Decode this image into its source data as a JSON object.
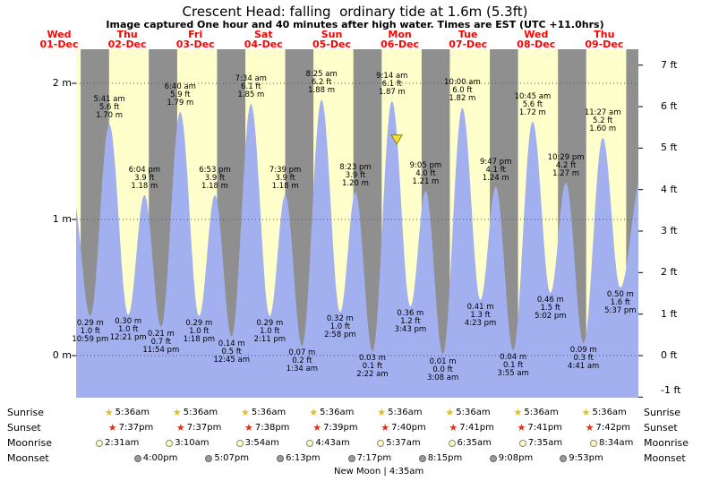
{
  "title": "Crescent Head: falling  ordinary tide at 1.6m (5.3ft)",
  "subtitle": "Image captured One hour and 40 minutes after high water. Times are EST (UTC +11.0hrs)",
  "colors": {
    "day_bg": "#ffffcc",
    "night_bg": "#8f8f8f",
    "tide_fill": "#a3b0f0",
    "day_label_red": "#ff0000",
    "marker_fill": "#f2e33c",
    "marker_border": "#8a8000",
    "sunrise_star": "#dfc019",
    "sunset_star": "#d63318",
    "moonrise_dot_fill": "#ffffbb",
    "moonrise_dot_border": "#888888",
    "moonset_dot_fill": "#9a9a9a",
    "moonset_dot_border": "#666666"
  },
  "days": [
    {
      "name": "Wed",
      "date": "01-Dec"
    },
    {
      "name": "Thu",
      "date": "02-Dec"
    },
    {
      "name": "Fri",
      "date": "03-Dec"
    },
    {
      "name": "Sat",
      "date": "04-Dec"
    },
    {
      "name": "Sun",
      "date": "05-Dec"
    },
    {
      "name": "Mon",
      "date": "06-Dec"
    },
    {
      "name": "Tue",
      "date": "07-Dec"
    },
    {
      "name": "Wed",
      "date": "08-Dec"
    },
    {
      "name": "Thu",
      "date": "09-Dec"
    }
  ],
  "axes": {
    "left": [
      {
        "label": "2 m",
        "m": 2
      },
      {
        "label": "1 m",
        "m": 1
      },
      {
        "label": "0 m",
        "m": 0
      }
    ],
    "right": [
      {
        "label": "7 ft",
        "ft": 7
      },
      {
        "label": "6 ft",
        "ft": 6
      },
      {
        "label": "5 ft",
        "ft": 5
      },
      {
        "label": "4 ft",
        "ft": 4
      },
      {
        "label": "3 ft",
        "ft": 3
      },
      {
        "label": "2 ft",
        "ft": 2
      },
      {
        "label": "1 ft",
        "ft": 1
      },
      {
        "label": "0 ft",
        "ft": 0
      },
      {
        "label": "-1 ft",
        "ft": -1
      }
    ]
  },
  "chart_data": {
    "type": "area",
    "series_name": "tide height",
    "x_range": "Wed 01-Dec evening through Thu 09-Dec night, day/night shaded",
    "y_left_unit": "m",
    "y_right_unit": "ft",
    "y_left_ticks": [
      0,
      1,
      2
    ],
    "y_right_ticks": [
      -1,
      0,
      1,
      2,
      3,
      4,
      5,
      6,
      7
    ],
    "tide_events": [
      {
        "type": "low",
        "day": 1,
        "time": "10:59 pm",
        "height_m": "0.29",
        "height_ft": "1.0"
      },
      {
        "type": "high",
        "day": 2,
        "time": "5:41 am",
        "height_m": "1.70",
        "height_ft": "5.6"
      },
      {
        "type": "low",
        "day": 2,
        "time": "12:21 pm",
        "height_m": "0.30",
        "height_ft": "1.0"
      },
      {
        "type": "high",
        "day": 2,
        "time": "6:04 pm",
        "height_m": "1.18",
        "height_ft": "3.9"
      },
      {
        "type": "low",
        "day": 2,
        "time": "11:54 pm",
        "height_m": "0.21",
        "height_ft": "0.7"
      },
      {
        "type": "high",
        "day": 3,
        "time": "6:40 am",
        "height_m": "1.79",
        "height_ft": "5.9"
      },
      {
        "type": "low",
        "day": 3,
        "time": "1:18 pm",
        "height_m": "0.29",
        "height_ft": "1.0"
      },
      {
        "type": "high",
        "day": 3,
        "time": "6:53 pm",
        "height_m": "1.18",
        "height_ft": "3.9"
      },
      {
        "type": "low",
        "day": 4,
        "time": "12:45 am",
        "height_m": "0.14",
        "height_ft": "0.5"
      },
      {
        "type": "high",
        "day": 4,
        "time": "7:34 am",
        "height_m": "1.85",
        "height_ft": "6.1"
      },
      {
        "type": "low",
        "day": 4,
        "time": "2:11 pm",
        "height_m": "0.29",
        "height_ft": "1.0"
      },
      {
        "type": "high",
        "day": 4,
        "time": "7:39 pm",
        "height_m": "1.18",
        "height_ft": "3.9"
      },
      {
        "type": "low",
        "day": 5,
        "time": "1:34 am",
        "height_m": "0.07",
        "height_ft": "0.2"
      },
      {
        "type": "high",
        "day": 5,
        "time": "8:25 am",
        "height_m": "1.88",
        "height_ft": "6.2"
      },
      {
        "type": "low",
        "day": 5,
        "time": "2:58 pm",
        "height_m": "0.32",
        "height_ft": "1.0"
      },
      {
        "type": "high",
        "day": 5,
        "time": "8:23 pm",
        "height_m": "1.20",
        "height_ft": "3.9"
      },
      {
        "type": "low",
        "day": 6,
        "time": "2:22 am",
        "height_m": "0.03",
        "height_ft": "0.1"
      },
      {
        "type": "high",
        "day": 6,
        "time": "9:14 am",
        "height_m": "1.87",
        "height_ft": "6.1"
      },
      {
        "type": "low",
        "day": 6,
        "time": "3:43 pm",
        "height_m": "0.36",
        "height_ft": "1.2"
      },
      {
        "type": "high",
        "day": 6,
        "time": "9:05 pm",
        "height_m": "1.21",
        "height_ft": "4.0"
      },
      {
        "type": "low",
        "day": 7,
        "time": "3:08 am",
        "height_m": "0.01",
        "height_ft": "0.0"
      },
      {
        "type": "high",
        "day": 7,
        "time": "10:00 am",
        "height_m": "1.82",
        "height_ft": "6.0"
      },
      {
        "type": "low",
        "day": 7,
        "time": "4:23 pm",
        "height_m": "0.41",
        "height_ft": "1.3"
      },
      {
        "type": "high",
        "day": 7,
        "time": "9:47 pm",
        "height_m": "1.24",
        "height_ft": "4.1"
      },
      {
        "type": "low",
        "day": 8,
        "time": "3:55 am",
        "height_m": "0.04",
        "height_ft": "0.1"
      },
      {
        "type": "high",
        "day": 8,
        "time": "10:45 am",
        "height_m": "1.72",
        "height_ft": "5.6"
      },
      {
        "type": "low",
        "day": 8,
        "time": "5:02 pm",
        "height_m": "0.46",
        "height_ft": "1.5"
      },
      {
        "type": "high",
        "day": 8,
        "time": "10:29 pm",
        "height_m": "1.27",
        "height_ft": "4.2"
      },
      {
        "type": "low",
        "day": 9,
        "time": "4:41 am",
        "height_m": "0.09",
        "height_ft": "0.3"
      },
      {
        "type": "high",
        "day": 9,
        "time": "11:27 am",
        "height_m": "1.60",
        "height_ft": "5.2"
      },
      {
        "type": "low",
        "day": 9,
        "time": "5:37 pm",
        "height_m": "0.50",
        "height_ft": "1.6"
      }
    ],
    "current_marker": {
      "day": 6,
      "time": "10:54 am",
      "height_m": "1.60"
    }
  },
  "astro": {
    "row_labels": [
      "Sunrise",
      "Sunset",
      "Moonrise",
      "Moonset"
    ],
    "sunrise": [
      {
        "day": 2,
        "time": "5:36am"
      },
      {
        "day": 3,
        "time": "5:36am"
      },
      {
        "day": 4,
        "time": "5:36am"
      },
      {
        "day": 5,
        "time": "5:36am"
      },
      {
        "day": 6,
        "time": "5:36am"
      },
      {
        "day": 7,
        "time": "5:36am"
      },
      {
        "day": 8,
        "time": "5:36am"
      },
      {
        "day": 9,
        "time": "5:36am"
      }
    ],
    "sunset": [
      {
        "day": 2,
        "time": "7:37pm"
      },
      {
        "day": 3,
        "time": "7:37pm"
      },
      {
        "day": 4,
        "time": "7:38pm"
      },
      {
        "day": 5,
        "time": "7:39pm"
      },
      {
        "day": 6,
        "time": "7:40pm"
      },
      {
        "day": 7,
        "time": "7:41pm"
      },
      {
        "day": 8,
        "time": "7:41pm"
      },
      {
        "day": 9,
        "time": "7:42pm"
      }
    ],
    "moonrise": [
      {
        "day": 2,
        "time": "2:31am"
      },
      {
        "day": 3,
        "time": "3:10am"
      },
      {
        "day": 4,
        "time": "3:54am"
      },
      {
        "day": 5,
        "time": "4:43am"
      },
      {
        "day": 6,
        "time": "5:37am"
      },
      {
        "day": 7,
        "time": "6:35am"
      },
      {
        "day": 8,
        "time": "7:35am"
      },
      {
        "day": 9,
        "time": "8:34am"
      }
    ],
    "moonset": [
      {
        "day": 2,
        "time": "4:00pm"
      },
      {
        "day": 3,
        "time": "5:07pm"
      },
      {
        "day": 4,
        "time": "6:13pm"
      },
      {
        "day": 5,
        "time": "7:17pm"
      },
      {
        "day": 6,
        "time": "8:15pm"
      },
      {
        "day": 7,
        "time": "9:08pm"
      },
      {
        "day": 8,
        "time": "9:53pm"
      }
    ],
    "new_moon": {
      "day": 6,
      "time": "4:35am",
      "label": "New Moon | 4:35am"
    }
  }
}
